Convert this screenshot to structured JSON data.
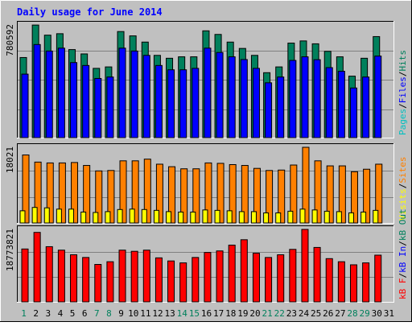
{
  "chart_data": {
    "type": "bar",
    "title": "Daily usage for June 2014",
    "categories": [
      "1",
      "2",
      "3",
      "4",
      "5",
      "6",
      "7",
      "8",
      "9",
      "10",
      "11",
      "12",
      "13",
      "14",
      "15",
      "16",
      "17",
      "18",
      "19",
      "20",
      "21",
      "22",
      "23",
      "24",
      "25",
      "26",
      "27",
      "28",
      "29",
      "30",
      "31"
    ],
    "weekend_days": [
      "1",
      "7",
      "8",
      "14",
      "15",
      "21",
      "22",
      "28",
      "29"
    ],
    "grid": true,
    "legend": "right-side vertical labels",
    "panels": [
      {
        "id": "hits-files-pages",
        "axis_max_label": "780592",
        "ylim": [
          0,
          780592
        ],
        "legend_parts": [
          {
            "text": "Pages",
            "color": "#00c0c0"
          },
          {
            "text": "/",
            "color": "#000000"
          },
          {
            "text": "Files",
            "color": "#0000ff"
          },
          {
            "text": "/",
            "color": "#000000"
          },
          {
            "text": "Hits",
            "color": "#00805c"
          }
        ],
        "series": [
          {
            "name": "Hits",
            "color": "#00805c",
            "values": [
              555000,
              780000,
              710000,
              720000,
              610000,
              580000,
              480000,
              490000,
              735000,
              705000,
              662000,
              570000,
              550000,
              560000,
              560000,
              740000,
              715000,
              662000,
              618000,
              570000,
              450000,
              490000,
              655000,
              670000,
              650000,
              598000,
              560000,
              426000,
              550000,
              700000,
              null
            ]
          },
          {
            "name": "Files",
            "color": "#0000ff",
            "values": [
              440000,
              645000,
              600000,
              620000,
              520000,
              500000,
              410000,
              420000,
              620000,
              600000,
              570000,
              500000,
              470000,
              470000,
              480000,
              620000,
              590000,
              560000,
              541000,
              480000,
              380000,
              420000,
              535000,
              560000,
              540000,
              485000,
              460000,
              344000,
              420000,
              565000,
              null
            ]
          },
          {
            "name": "Pages",
            "color": "#00c0c0",
            "values": [
              null,
              null,
              null,
              null,
              null,
              null,
              null,
              null,
              null,
              null,
              null,
              null,
              null,
              null,
              null,
              null,
              null,
              null,
              null,
              null,
              null,
              null,
              null,
              null,
              null,
              null,
              null,
              null,
              null,
              null,
              null
            ]
          }
        ]
      },
      {
        "id": "visits-sites",
        "axis_max_label": "18021",
        "ylim": [
          0,
          18021
        ],
        "legend_parts": [
          {
            "text": "Visits",
            "color": "#ffff00"
          },
          {
            "text": "/",
            "color": "#000000"
          },
          {
            "text": "Sites",
            "color": "#ff8000"
          }
        ],
        "series": [
          {
            "name": "Sites",
            "color": "#ff8000",
            "values": [
              16200,
              14500,
              14300,
              14300,
              14400,
              13700,
              12400,
              12500,
              14800,
              14800,
              15200,
              14000,
              13400,
              12900,
              12900,
              14300,
              14200,
              13900,
              13700,
              13000,
              12500,
              12600,
              13800,
              18021,
              14800,
              13600,
              13600,
              12200,
              12800,
              14000,
              null
            ]
          },
          {
            "name": "Visits",
            "color": "#ffff00",
            "values": [
              2900,
              3700,
              3600,
              3300,
              3300,
              2600,
              2500,
              2700,
              3200,
              3300,
              3200,
              3000,
              2700,
              2600,
              2600,
              3100,
              3000,
              2900,
              2700,
              2700,
              2400,
              2400,
              2800,
              3300,
              3100,
              2800,
              2700,
              2400,
              2600,
              3000,
              null
            ]
          }
        ]
      },
      {
        "id": "kbytes",
        "axis_max_label": "18773821",
        "ylim": [
          0,
          18773821
        ],
        "legend_parts": [
          {
            "text": "kB F",
            "color": "#ff0000"
          },
          {
            "text": "/",
            "color": "#000000"
          },
          {
            "text": "kB In",
            "color": "#0000ff"
          },
          {
            "text": "/",
            "color": "#000000"
          },
          {
            "text": "kB Out",
            "color": "#00805c"
          }
        ],
        "series": [
          {
            "name": "kB F",
            "color": "#ff0000",
            "values": [
              13700,
              18000,
              14300,
              13400,
              12200,
              11500,
              9700,
              10400,
              13400,
              13100,
              13400,
              11400,
              10600,
              10100,
              11500,
              12800,
              13200,
              14700,
              16100,
              12600,
              11500,
              12200,
              13600,
              18773,
              14100,
              11200,
              10400,
              9600,
              10100,
              12100,
              null
            ]
          }
        ]
      }
    ]
  }
}
